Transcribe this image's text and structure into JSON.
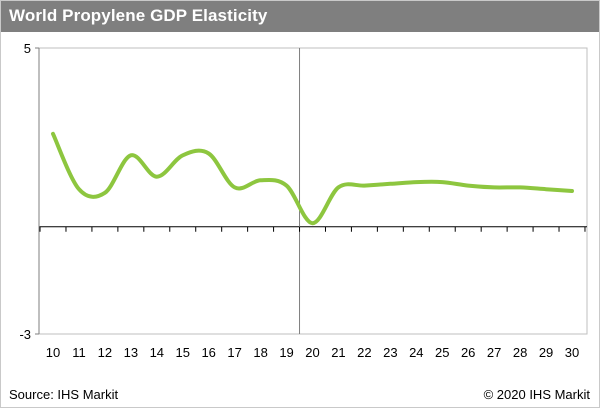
{
  "header": {
    "title": "World Propylene GDP Elasticity"
  },
  "footer": {
    "source": "Source: IHS Markit",
    "copyright": "© 2020 IHS Markit"
  },
  "colors": {
    "title_bar": "#7f7f7f",
    "series_line": "#8dc63f",
    "axis": "#7f7f7f",
    "plot_border": "#bfbfbf"
  },
  "chart_data": {
    "type": "line",
    "title": "World Propylene GDP Elasticity",
    "xlabel": "",
    "ylabel": "",
    "x": [
      10,
      11,
      12,
      13,
      14,
      15,
      16,
      17,
      18,
      19,
      20,
      21,
      22,
      23,
      24,
      25,
      26,
      27,
      28,
      29,
      30
    ],
    "x_tick_labels": [
      "10",
      "11",
      "12",
      "13",
      "14",
      "15",
      "16",
      "17",
      "18",
      "19",
      "20",
      "21",
      "22",
      "23",
      "24",
      "25",
      "26",
      "27",
      "28",
      "29",
      "30"
    ],
    "series": [
      {
        "values": [
          2.6,
          1.05,
          0.95,
          2.0,
          1.4,
          2.0,
          2.05,
          1.1,
          1.3,
          1.15,
          0.1,
          1.1,
          1.15,
          1.2,
          1.25,
          1.25,
          1.15,
          1.1,
          1.1,
          1.05,
          1.0
        ]
      }
    ],
    "ylim": [
      -3,
      5
    ],
    "y_tick_labels": [
      "5",
      "-3"
    ],
    "divider_x": 19.5,
    "grid": false,
    "legend": "none"
  }
}
